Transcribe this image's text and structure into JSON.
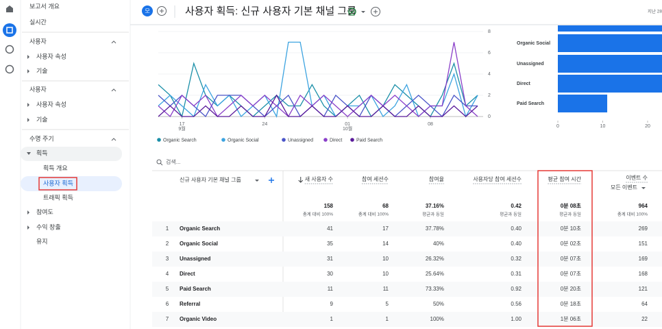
{
  "nav": [
    "보고서 개요",
    "실시간",
    "사용자",
    "사용자 속성",
    "기술",
    "사용자",
    "사용자 속성",
    "기술",
    "수명 주기",
    "획득",
    "획득 개요",
    "사용자 획득",
    "트래픽 획득",
    "참여도",
    "수익 창출",
    "유지"
  ],
  "header": {
    "badge": "모",
    "title": "사용자 획득: 신규 사용자 기본 채널 그룹",
    "date_range": "지난 28"
  },
  "line_chart": {
    "type": "line",
    "categories": [
      null,
      null,
      {
        "day": "17",
        "month": "9월"
      },
      null,
      null,
      null,
      null,
      null,
      null,
      {
        "day": "24"
      },
      null,
      null,
      null,
      null,
      null,
      null,
      {
        "day": "01",
        "month": "10월"
      },
      null,
      null,
      null,
      null,
      null,
      null,
      {
        "day": "08"
      },
      null,
      null,
      null,
      null
    ],
    "ylim": [
      0,
      8
    ],
    "yticks": [
      0,
      2,
      4,
      6,
      8
    ],
    "series": [
      {
        "name": "Organic Search",
        "color": "#1b8fa8",
        "values": [
          3,
          2,
          0,
          5,
          2,
          1,
          2,
          1,
          0,
          1,
          2,
          1,
          1,
          3,
          1,
          0,
          1,
          2,
          0,
          1,
          3,
          2,
          1,
          0,
          2,
          5,
          1,
          2
        ]
      },
      {
        "name": "Organic Social",
        "color": "#3ca3e0",
        "values": [
          1,
          2,
          1,
          0,
          3,
          1,
          2,
          0,
          1,
          2,
          0,
          7,
          7,
          1,
          2,
          0,
          1,
          1,
          2,
          0,
          1,
          3,
          0,
          1,
          1,
          4,
          0,
          2
        ]
      },
      {
        "name": "Unassigned",
        "color": "#4a55c8",
        "values": [
          2,
          1,
          2,
          1,
          0,
          2,
          2,
          2,
          1,
          0,
          1,
          2,
          0,
          1,
          0,
          2,
          1,
          0,
          2,
          1,
          0,
          1,
          2,
          1,
          0,
          2,
          1,
          1
        ]
      },
      {
        "name": "Direct",
        "color": "#8a3fc9",
        "values": [
          1,
          0,
          2,
          1,
          2,
          0,
          1,
          2,
          1,
          2,
          1,
          0,
          2,
          1,
          2,
          1,
          0,
          1,
          2,
          1,
          2,
          1,
          0,
          1,
          1,
          7,
          1,
          0
        ]
      },
      {
        "name": "Paid Search",
        "color": "#5a1a9a",
        "values": [
          0,
          1,
          0,
          0,
          1,
          0,
          0,
          1,
          0,
          0,
          2,
          0,
          0,
          1,
          0,
          0,
          1,
          0,
          0,
          1,
          0,
          0,
          1,
          0,
          0,
          1,
          0,
          1
        ]
      }
    ]
  },
  "bar_chart": {
    "type": "bar",
    "color": "#1a73e8",
    "xlim": [
      0,
      40
    ],
    "xticks": [
      0,
      10,
      20
    ]
  },
  "table": {
    "search": "검색...",
    "columns": [
      "신규 사용자 기본 채널 그룹",
      "새 사용자 수",
      "참여 세션수",
      "참여율",
      "사용자당 참여 세션수",
      "평균 참여 시간",
      "이벤트 수"
    ],
    "events_filter": "모든 이벤트",
    "totals": [
      {
        "value": "158",
        "note": "총계 대비 100%"
      },
      {
        "value": "68",
        "note": "총계 대비 100%"
      },
      {
        "value": "37.16%",
        "note": "평균과 동일"
      },
      {
        "value": "0.42",
        "note": "평균과 동일"
      },
      {
        "value": "0분 08초",
        "note": "평균과 동일"
      },
      {
        "value": "964",
        "note": "총계 대비 100%"
      }
    ],
    "rows": [
      {
        "index": "1",
        "name": "Organic Search",
        "new_users": 41,
        "sessions": "17",
        "rate": "37.78%",
        "per_user": "0.40",
        "avg_time": "0분 10초",
        "events": "269"
      },
      {
        "index": "2",
        "name": "Organic Social",
        "new_users": 35,
        "sessions": "14",
        "rate": "40%",
        "per_user": "0.40",
        "avg_time": "0분 02초",
        "events": "151"
      },
      {
        "index": "3",
        "name": "Unassigned",
        "new_users": 31,
        "sessions": "10",
        "rate": "26.32%",
        "per_user": "0.32",
        "avg_time": "0분 07초",
        "events": "169"
      },
      {
        "index": "4",
        "name": "Direct",
        "new_users": 30,
        "sessions": "10",
        "rate": "25.64%",
        "per_user": "0.31",
        "avg_time": "0분 07초",
        "events": "168"
      },
      {
        "index": "5",
        "name": "Paid Search",
        "new_users": 11,
        "sessions": "11",
        "rate": "73.33%",
        "per_user": "0.92",
        "avg_time": "0분 20초",
        "events": "121"
      },
      {
        "index": "6",
        "name": "Referral",
        "new_users": 9,
        "sessions": "5",
        "rate": "50%",
        "per_user": "0.56",
        "avg_time": "0분 18초",
        "events": "64"
      },
      {
        "index": "7",
        "name": "Organic Video",
        "new_users": 1,
        "sessions": "1",
        "rate": "100%",
        "per_user": "1.00",
        "avg_time": "1분 06초",
        "events": "22"
      }
    ]
  }
}
